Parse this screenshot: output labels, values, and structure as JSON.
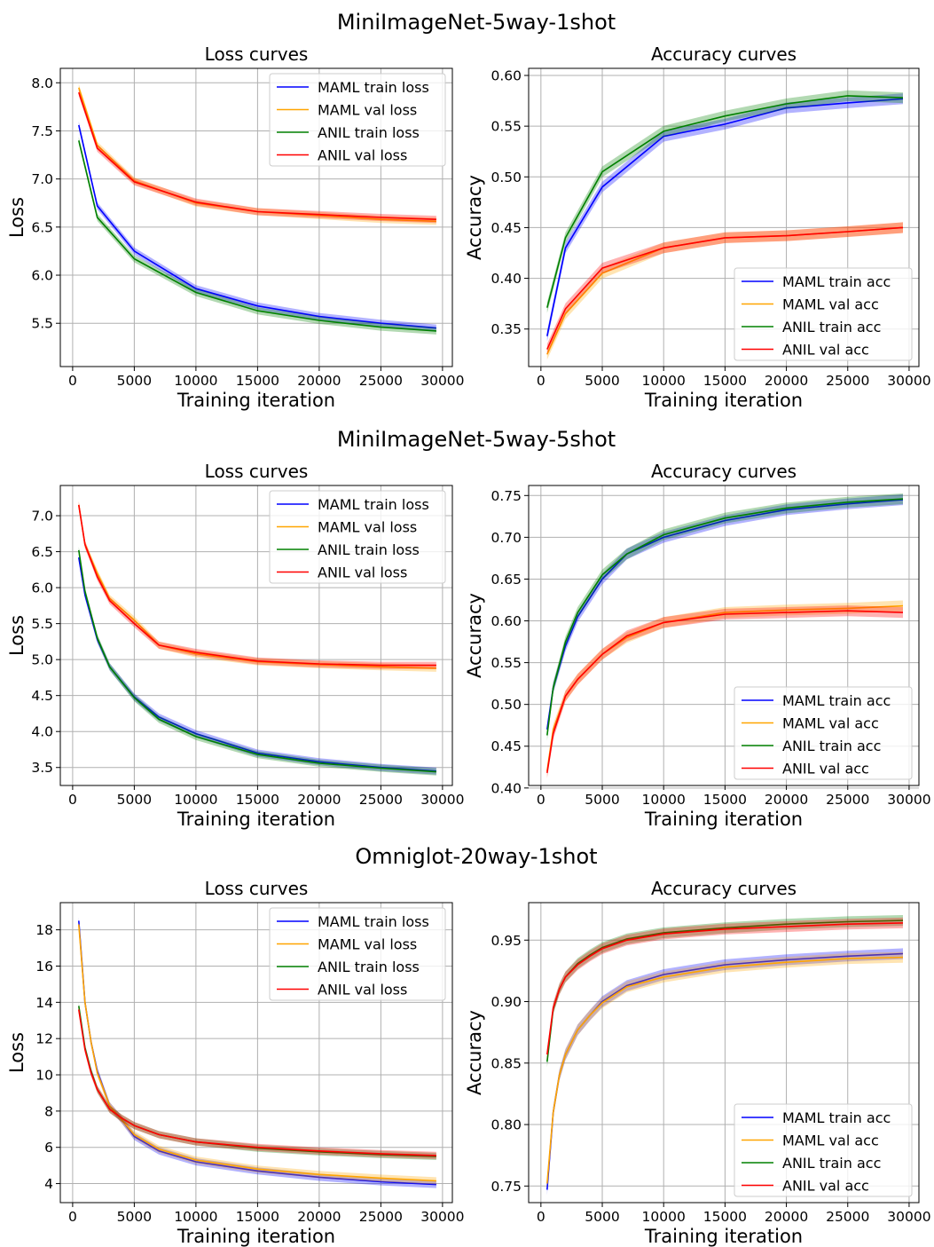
{
  "colors": {
    "maml_train": "#0000ff",
    "maml_val": "#ffa500",
    "anil_train": "#008000",
    "anil_val": "#ff0000"
  },
  "chart_data": [
    {
      "type": "line",
      "row_title": "MiniImageNet-5way-1shot",
      "title": "Loss curves",
      "xlabel": "Training iteration",
      "ylabel": "Loss",
      "xlim": [
        -1000,
        30800
      ],
      "ylim": [
        5.05,
        8.15
      ],
      "xticks": [
        0,
        5000,
        10000,
        15000,
        20000,
        25000,
        30000
      ],
      "yticks": [
        5.5,
        6.0,
        6.5,
        7.0,
        7.5,
        8.0
      ],
      "ytick_labels": [
        "5.5",
        "6.0",
        "6.5",
        "7.0",
        "7.5",
        "8.0"
      ],
      "grid": true,
      "legend_position": "top-right",
      "series": [
        {
          "name": "MAML train loss",
          "color_key": "maml_train",
          "x": [
            500,
            2000,
            5000,
            10000,
            15000,
            20000,
            25000,
            29500
          ],
          "y": [
            7.56,
            6.72,
            6.25,
            5.86,
            5.68,
            5.57,
            5.5,
            5.45
          ]
        },
        {
          "name": "MAML val loss",
          "color_key": "maml_val",
          "x": [
            500,
            2000,
            5000,
            10000,
            15000,
            20000,
            25000,
            29500
          ],
          "y": [
            7.95,
            7.35,
            6.98,
            6.75,
            6.66,
            6.62,
            6.58,
            6.56
          ]
        },
        {
          "name": "ANIL train loss",
          "color_key": "anil_train",
          "x": [
            500,
            2000,
            5000,
            10000,
            15000,
            20000,
            25000,
            29500
          ],
          "y": [
            7.4,
            6.6,
            6.17,
            5.82,
            5.63,
            5.53,
            5.46,
            5.42
          ]
        },
        {
          "name": "ANIL val loss",
          "color_key": "anil_val",
          "x": [
            500,
            2000,
            5000,
            10000,
            15000,
            20000,
            25000,
            29500
          ],
          "y": [
            7.9,
            7.32,
            6.97,
            6.76,
            6.66,
            6.63,
            6.6,
            6.58
          ]
        }
      ]
    },
    {
      "type": "line",
      "row_title": "MiniImageNet-5way-1shot",
      "title": "Accuracy curves",
      "xlabel": "Training iteration",
      "ylabel": "Accuracy",
      "xlim": [
        -1000,
        30800
      ],
      "ylim": [
        0.313,
        0.607
      ],
      "xticks": [
        0,
        5000,
        10000,
        15000,
        20000,
        25000,
        30000
      ],
      "yticks": [
        0.35,
        0.4,
        0.45,
        0.5,
        0.55,
        0.6
      ],
      "ytick_labels": [
        "0.35",
        "0.40",
        "0.45",
        "0.50",
        "0.55",
        "0.60"
      ],
      "grid": true,
      "legend_position": "bottom-right",
      "series": [
        {
          "name": "MAML train acc",
          "color_key": "maml_train",
          "x": [
            500,
            2000,
            5000,
            10000,
            15000,
            20000,
            25000,
            29500
          ],
          "y": [
            0.343,
            0.43,
            0.49,
            0.54,
            0.552,
            0.568,
            0.573,
            0.577
          ]
        },
        {
          "name": "MAML val acc",
          "color_key": "maml_val",
          "x": [
            500,
            2000,
            5000,
            10000,
            15000,
            20000,
            25000,
            29500
          ],
          "y": [
            0.325,
            0.365,
            0.405,
            0.43,
            0.44,
            0.442,
            0.446,
            0.45
          ]
        },
        {
          "name": "ANIL train acc",
          "color_key": "anil_train",
          "x": [
            500,
            2000,
            5000,
            10000,
            15000,
            20000,
            25000,
            29500
          ],
          "y": [
            0.371,
            0.44,
            0.505,
            0.545,
            0.56,
            0.572,
            0.58,
            0.578
          ]
        },
        {
          "name": "ANIL val acc",
          "color_key": "anil_val",
          "x": [
            500,
            2000,
            5000,
            10000,
            15000,
            20000,
            25000,
            29500
          ],
          "y": [
            0.33,
            0.37,
            0.41,
            0.43,
            0.44,
            0.442,
            0.446,
            0.45
          ]
        }
      ]
    },
    {
      "type": "line",
      "row_title": "MiniImageNet-5way-5shot",
      "title": "Loss curves",
      "xlabel": "Training iteration",
      "ylabel": "Loss",
      "xlim": [
        -1000,
        30800
      ],
      "ylim": [
        3.25,
        7.42
      ],
      "xticks": [
        0,
        5000,
        10000,
        15000,
        20000,
        25000,
        30000
      ],
      "yticks": [
        3.5,
        4.0,
        4.5,
        5.0,
        5.5,
        6.0,
        6.5,
        7.0
      ],
      "ytick_labels": [
        "3.5",
        "4.0",
        "4.5",
        "5.0",
        "5.5",
        "6.0",
        "6.5",
        "7.0"
      ],
      "grid": true,
      "legend_position": "top-right",
      "series": [
        {
          "name": "MAML train loss",
          "color_key": "maml_train",
          "x": [
            500,
            1000,
            2000,
            3000,
            5000,
            7000,
            10000,
            15000,
            20000,
            25000,
            29500
          ],
          "y": [
            6.42,
            5.9,
            5.28,
            4.9,
            4.48,
            4.2,
            3.97,
            3.7,
            3.58,
            3.5,
            3.45
          ]
        },
        {
          "name": "MAML val loss",
          "color_key": "maml_val",
          "x": [
            500,
            1000,
            2000,
            3000,
            5000,
            7000,
            10000,
            15000,
            20000,
            25000,
            29500
          ],
          "y": [
            7.15,
            6.6,
            6.2,
            5.85,
            5.55,
            5.2,
            5.08,
            4.97,
            4.93,
            4.9,
            4.88
          ]
        },
        {
          "name": "ANIL train loss",
          "color_key": "anil_train",
          "x": [
            500,
            1000,
            2000,
            3000,
            5000,
            7000,
            10000,
            15000,
            20000,
            25000,
            29500
          ],
          "y": [
            6.52,
            5.95,
            5.3,
            4.9,
            4.47,
            4.17,
            3.93,
            3.68,
            3.56,
            3.49,
            3.44
          ]
        },
        {
          "name": "ANIL val loss",
          "color_key": "anil_val",
          "x": [
            500,
            1000,
            2000,
            3000,
            5000,
            7000,
            10000,
            15000,
            20000,
            25000,
            29500
          ],
          "y": [
            7.15,
            6.6,
            6.15,
            5.82,
            5.5,
            5.2,
            5.1,
            4.98,
            4.94,
            4.92,
            4.92
          ]
        }
      ]
    },
    {
      "type": "line",
      "row_title": "MiniImageNet-5way-5shot",
      "title": "Accuracy curves",
      "xlabel": "Training iteration",
      "ylabel": "Accuracy",
      "xlim": [
        -1000,
        30800
      ],
      "ylim": [
        0.403,
        0.762
      ],
      "xticks": [
        0,
        5000,
        10000,
        15000,
        20000,
        25000,
        30000
      ],
      "yticks": [
        0.4,
        0.45,
        0.5,
        0.55,
        0.6,
        0.65,
        0.7,
        0.75
      ],
      "ytick_labels": [
        "0.40",
        "0.45",
        "0.50",
        "0.55",
        "0.60",
        "0.65",
        "0.70",
        "0.75"
      ],
      "grid": true,
      "legend_position": "bottom-right",
      "series": [
        {
          "name": "MAML train acc",
          "color_key": "maml_train",
          "x": [
            500,
            1000,
            2000,
            3000,
            5000,
            7000,
            10000,
            15000,
            20000,
            25000,
            29500
          ],
          "y": [
            0.47,
            0.52,
            0.57,
            0.605,
            0.65,
            0.68,
            0.7,
            0.72,
            0.733,
            0.74,
            0.745
          ]
        },
        {
          "name": "MAML val acc",
          "color_key": "maml_val",
          "x": [
            500,
            1000,
            2000,
            3000,
            5000,
            7000,
            10000,
            15000,
            20000,
            25000,
            29500
          ],
          "y": [
            0.42,
            0.47,
            0.51,
            0.53,
            0.56,
            0.58,
            0.598,
            0.61,
            0.613,
            0.615,
            0.618
          ]
        },
        {
          "name": "ANIL train acc",
          "color_key": "anil_train",
          "x": [
            500,
            1000,
            2000,
            3000,
            5000,
            7000,
            10000,
            15000,
            20000,
            25000,
            29500
          ],
          "y": [
            0.463,
            0.52,
            0.575,
            0.61,
            0.655,
            0.68,
            0.703,
            0.723,
            0.735,
            0.742,
            0.746
          ]
        },
        {
          "name": "ANIL val acc",
          "color_key": "anil_val",
          "x": [
            500,
            1000,
            2000,
            3000,
            5000,
            7000,
            10000,
            15000,
            20000,
            25000,
            29500
          ],
          "y": [
            0.418,
            0.465,
            0.51,
            0.53,
            0.56,
            0.582,
            0.598,
            0.608,
            0.61,
            0.612,
            0.61
          ]
        }
      ]
    },
    {
      "type": "line",
      "row_title": "Omniglot-20way-1shot",
      "title": "Loss curves",
      "xlabel": "Training iteration",
      "ylabel": "Loss",
      "xlim": [
        -1000,
        30800
      ],
      "ylim": [
        2.95,
        19.5
      ],
      "xticks": [
        0,
        5000,
        10000,
        15000,
        20000,
        25000,
        30000
      ],
      "yticks": [
        4,
        6,
        8,
        10,
        12,
        14,
        16,
        18
      ],
      "ytick_labels": [
        "4",
        "6",
        "8",
        "10",
        "12",
        "14",
        "16",
        "18"
      ],
      "grid": true,
      "legend_position": "top-right",
      "series": [
        {
          "name": "MAML train loss",
          "color_key": "maml_train",
          "x": [
            500,
            1000,
            1500,
            2000,
            3000,
            4000,
            5000,
            7000,
            10000,
            15000,
            20000,
            25000,
            29500
          ],
          "y": [
            18.5,
            14.0,
            11.8,
            10.2,
            8.3,
            7.5,
            6.6,
            5.8,
            5.2,
            4.7,
            4.35,
            4.1,
            3.95
          ]
        },
        {
          "name": "MAML val loss",
          "color_key": "maml_val",
          "x": [
            500,
            1000,
            1500,
            2000,
            3000,
            4000,
            5000,
            7000,
            10000,
            15000,
            20000,
            25000,
            29500
          ],
          "y": [
            18.3,
            14.0,
            11.8,
            10.1,
            8.3,
            7.5,
            6.7,
            5.9,
            5.3,
            4.8,
            4.5,
            4.3,
            4.15
          ]
        },
        {
          "name": "ANIL train loss",
          "color_key": "anil_train",
          "x": [
            500,
            1000,
            1500,
            2000,
            3000,
            4000,
            5000,
            7000,
            10000,
            15000,
            20000,
            25000,
            29500
          ],
          "y": [
            13.8,
            11.5,
            10.2,
            9.2,
            8.1,
            7.6,
            7.2,
            6.7,
            6.3,
            5.95,
            5.75,
            5.6,
            5.5
          ]
        },
        {
          "name": "ANIL val loss",
          "color_key": "anil_val",
          "x": [
            500,
            1000,
            1500,
            2000,
            3000,
            4000,
            5000,
            7000,
            10000,
            15000,
            20000,
            25000,
            29500
          ],
          "y": [
            13.6,
            11.4,
            10.1,
            9.2,
            8.1,
            7.6,
            7.2,
            6.7,
            6.3,
            6.0,
            5.8,
            5.65,
            5.55
          ]
        }
      ]
    },
    {
      "type": "line",
      "row_title": "Omniglot-20way-1shot",
      "title": "Accuracy curves",
      "xlabel": "Training iteration",
      "ylabel": "Accuracy",
      "xlim": [
        -1000,
        30800
      ],
      "ylim": [
        0.7365,
        0.9805
      ],
      "xticks": [
        0,
        5000,
        10000,
        15000,
        20000,
        25000,
        30000
      ],
      "yticks": [
        0.75,
        0.8,
        0.85,
        0.9,
        0.95
      ],
      "ytick_labels": [
        "0.75",
        "0.80",
        "0.85",
        "0.90",
        "0.95"
      ],
      "grid": true,
      "legend_position": "bottom-right",
      "series": [
        {
          "name": "MAML train acc",
          "color_key": "maml_train",
          "x": [
            500,
            1000,
            1500,
            2000,
            3000,
            4000,
            5000,
            7000,
            10000,
            15000,
            20000,
            25000,
            29500
          ],
          "y": [
            0.747,
            0.81,
            0.84,
            0.857,
            0.877,
            0.889,
            0.9,
            0.913,
            0.922,
            0.93,
            0.934,
            0.937,
            0.939
          ]
        },
        {
          "name": "MAML val acc",
          "color_key": "maml_val",
          "x": [
            500,
            1000,
            1500,
            2000,
            3000,
            4000,
            5000,
            7000,
            10000,
            15000,
            20000,
            25000,
            29500
          ],
          "y": [
            0.752,
            0.81,
            0.84,
            0.857,
            0.877,
            0.889,
            0.899,
            0.912,
            0.92,
            0.928,
            0.932,
            0.935,
            0.936
          ]
        },
        {
          "name": "ANIL train acc",
          "color_key": "anil_train",
          "x": [
            500,
            1000,
            1500,
            2000,
            3000,
            4000,
            5000,
            7000,
            10000,
            15000,
            20000,
            25000,
            29500
          ],
          "y": [
            0.851,
            0.894,
            0.91,
            0.92,
            0.931,
            0.938,
            0.944,
            0.951,
            0.956,
            0.96,
            0.963,
            0.965,
            0.966
          ]
        },
        {
          "name": "ANIL val acc",
          "color_key": "anil_val",
          "x": [
            500,
            1000,
            1500,
            2000,
            3000,
            4000,
            5000,
            7000,
            10000,
            15000,
            20000,
            25000,
            29500
          ],
          "y": [
            0.857,
            0.895,
            0.91,
            0.92,
            0.93,
            0.937,
            0.943,
            0.95,
            0.955,
            0.959,
            0.961,
            0.963,
            0.964
          ]
        }
      ]
    }
  ]
}
